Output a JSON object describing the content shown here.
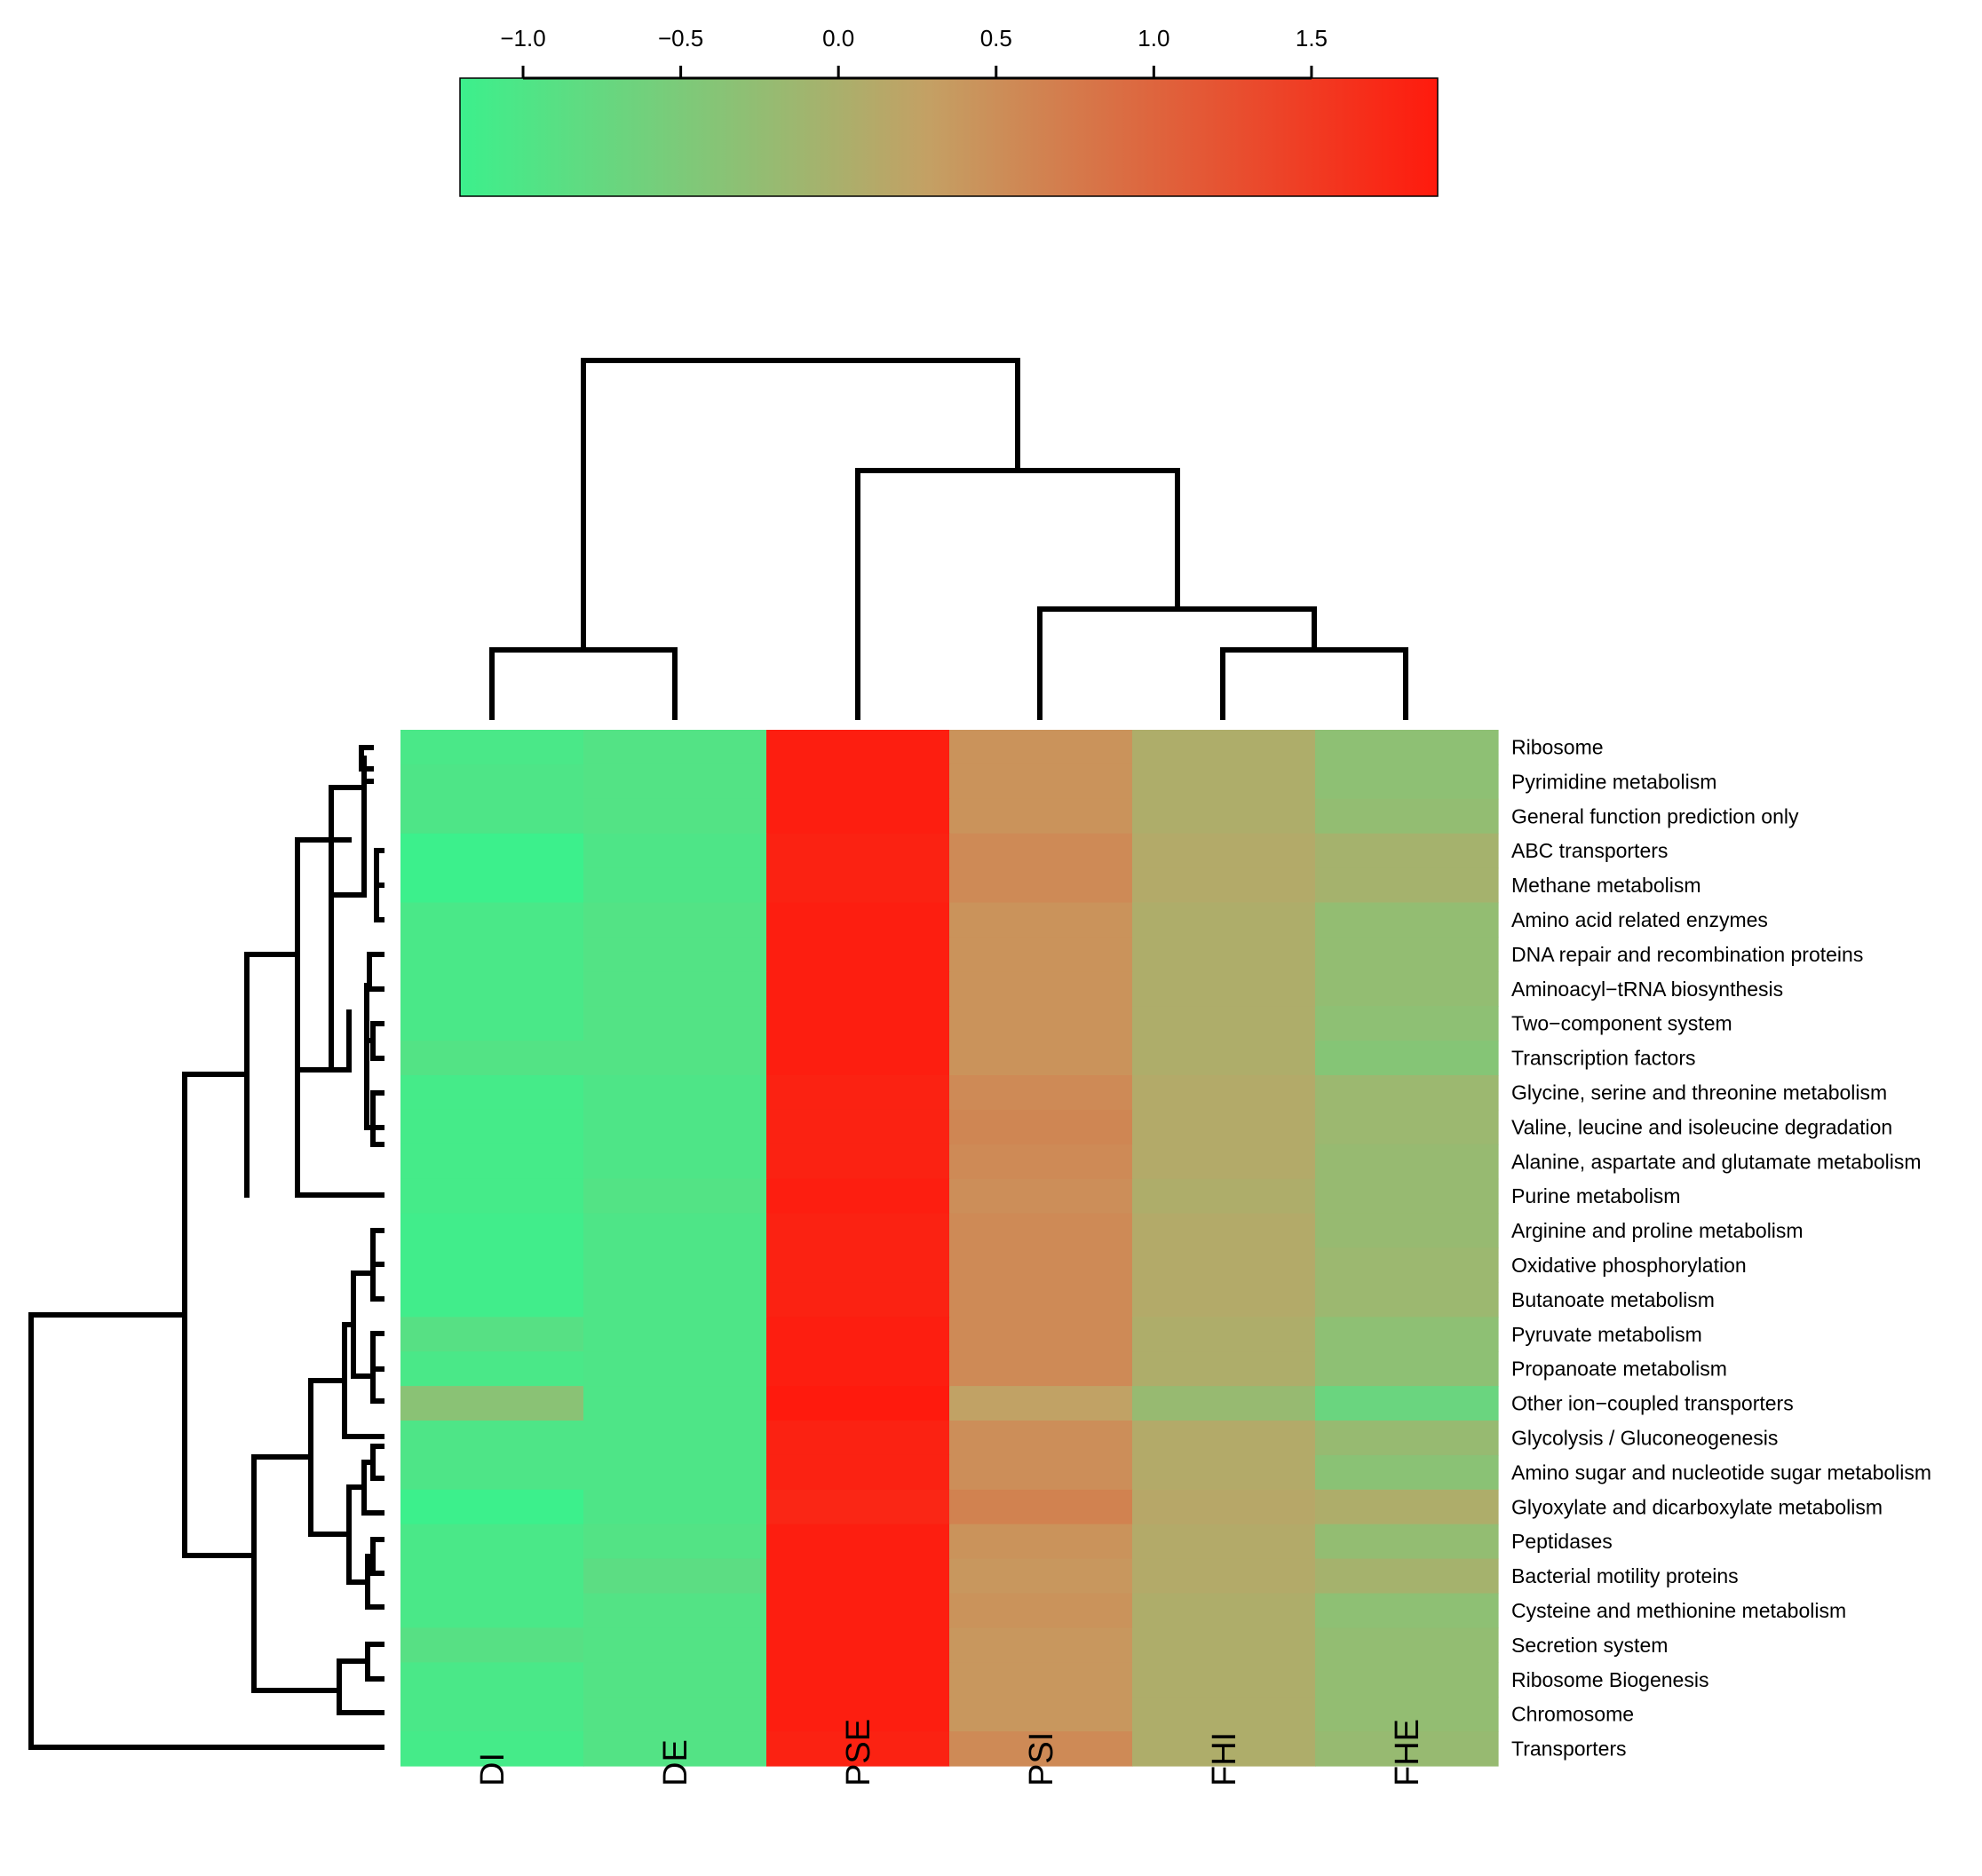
{
  "chart_data": {
    "type": "heatmap",
    "title": "",
    "columns": [
      "DI",
      "DE",
      "PSE",
      "PSI",
      "FHI",
      "FHE"
    ],
    "rows": [
      "Ribosome",
      "Pyrimidine metabolism",
      "General function prediction only",
      "ABC transporters",
      "Methane metabolism",
      "Amino acid related enzymes",
      "DNA repair and recombination proteins",
      "Aminoacyl−tRNA biosynthesis",
      "Two−component system",
      "Transcription factors",
      "Glycine, serine and threonine metabolism",
      "Valine, leucine and isoleucine degradation",
      "Alanine, aspartate and glutamate metabolism",
      "Purine metabolism",
      "Arginine and proline metabolism",
      "Oxidative phosphorylation",
      "Butanoate metabolism",
      "Pyruvate metabolism",
      "Propanoate metabolism",
      "Other ion−coupled transporters",
      "Glycolysis / Gluconeogenesis",
      "Amino sugar and nucleotide sugar metabolism",
      "Glyoxylate and dicarboxylate metabolism",
      "Peptidases",
      "Bacterial motility proteins",
      "Cysteine and methionine metabolism",
      "Secretion system",
      "Ribosome Biogenesis",
      "Chromosome",
      "Transporters"
    ],
    "values": [
      [
        -1.05,
        -0.95,
        1.85,
        0.45,
        0.05,
        -0.3
      ],
      [
        -1.0,
        -0.95,
        1.85,
        0.45,
        0.05,
        -0.3
      ],
      [
        -1.0,
        -0.95,
        1.85,
        0.45,
        0.05,
        -0.25
      ],
      [
        -1.2,
        -1.0,
        1.8,
        0.55,
        0.1,
        -0.05
      ],
      [
        -1.2,
        -1.0,
        1.8,
        0.55,
        0.1,
        -0.05
      ],
      [
        -1.05,
        -0.95,
        1.85,
        0.45,
        0.05,
        -0.25
      ],
      [
        -1.05,
        -0.95,
        1.85,
        0.45,
        0.05,
        -0.25
      ],
      [
        -1.05,
        -0.95,
        1.85,
        0.45,
        0.05,
        -0.25
      ],
      [
        -1.05,
        -0.95,
        1.85,
        0.45,
        0.05,
        -0.3
      ],
      [
        -0.95,
        -0.95,
        1.85,
        0.45,
        0.05,
        -0.4
      ],
      [
        -1.1,
        -1.0,
        1.8,
        0.55,
        0.1,
        -0.15
      ],
      [
        -1.1,
        -1.0,
        1.8,
        0.6,
        0.1,
        -0.15
      ],
      [
        -1.1,
        -1.0,
        1.8,
        0.55,
        0.1,
        -0.2
      ],
      [
        -1.1,
        -0.95,
        1.85,
        0.5,
        0.05,
        -0.2
      ],
      [
        -1.15,
        -1.0,
        1.8,
        0.55,
        0.1,
        -0.2
      ],
      [
        -1.15,
        -1.0,
        1.8,
        0.55,
        0.1,
        -0.15
      ],
      [
        -1.15,
        -1.0,
        1.8,
        0.55,
        0.1,
        -0.15
      ],
      [
        -0.9,
        -1.0,
        1.85,
        0.55,
        0.05,
        -0.3
      ],
      [
        -1.05,
        -1.0,
        1.85,
        0.55,
        0.05,
        -0.3
      ],
      [
        -0.35,
        -1.0,
        1.95,
        0.25,
        -0.2,
        -0.7
      ],
      [
        -1.0,
        -1.0,
        1.8,
        0.5,
        0.1,
        -0.2
      ],
      [
        -1.0,
        -1.0,
        1.8,
        0.5,
        0.1,
        -0.35
      ],
      [
        -1.25,
        -1.0,
        1.75,
        0.65,
        0.15,
        0.05
      ],
      [
        -1.05,
        -0.95,
        1.85,
        0.45,
        0.1,
        -0.25
      ],
      [
        -1.05,
        -0.85,
        1.85,
        0.4,
        0.1,
        -0.05
      ],
      [
        -1.05,
        -0.95,
        1.85,
        0.45,
        0.05,
        -0.3
      ],
      [
        -0.9,
        -0.95,
        1.85,
        0.4,
        0.05,
        -0.25
      ],
      [
        -1.05,
        -0.95,
        1.85,
        0.4,
        0.05,
        -0.25
      ],
      [
        -1.05,
        -0.95,
        1.85,
        0.4,
        0.05,
        -0.25
      ],
      [
        -1.1,
        -0.95,
        1.8,
        0.55,
        0.05,
        -0.2
      ]
    ],
    "color_scale": {
      "min": -1.2,
      "max": 1.9,
      "colors": [
        "#3cf08c",
        "#c4a064",
        "#ff1a0d"
      ],
      "ticks": [
        -1.0,
        -0.5,
        0.0,
        0.5,
        1.0,
        1.5
      ],
      "tick_labels": [
        "−1.0",
        "−0.5",
        "0.0",
        "0.5",
        "1.0",
        "1.5"
      ]
    },
    "column_dendrogram_order": [
      "DI",
      "DE",
      "PSE",
      "PSI",
      "FHI",
      "FHE"
    ],
    "row_dendrogram": true,
    "legend": "top"
  }
}
